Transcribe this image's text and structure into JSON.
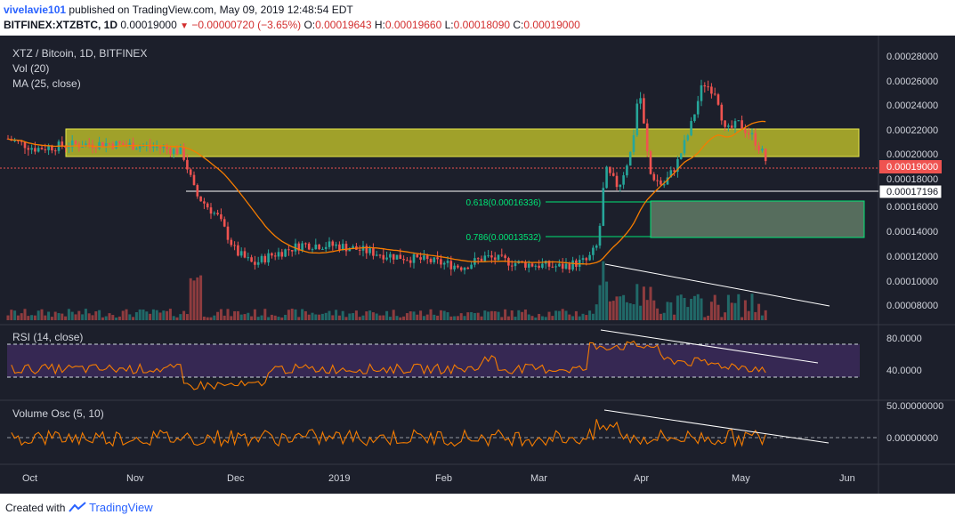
{
  "header": {
    "username": "vivelavie101",
    "published_text": "published on TradingView.com, May 09, 2019 12:48:54 EDT",
    "symbol": "BITFINEX:XTZBTC, 1D",
    "price": "0.00019000",
    "change": "−0.00000720 (−3.65%)",
    "open_label": "O:",
    "open": "0.00019643",
    "high_label": "H:",
    "high": "0.00019660",
    "low_label": "L:",
    "low": "0.00018090",
    "close_label": "C:",
    "close": "0.00019000"
  },
  "panes": {
    "main_title": "XTZ / Bitcoin, 1D, BITFINEX",
    "vol_label": "Vol (20)",
    "ma_label": "MA (25, close)",
    "rsi_label": "RSI (14, close)",
    "osc_label": "Volume Osc (5, 10)"
  },
  "price_axis": {
    "ticks": [
      "0.00028000",
      "0.00026000",
      "0.00024000",
      "0.00022000",
      "0.00020000",
      "0.00018000",
      "0.00016000",
      "0.00014000",
      "0.00012000",
      "0.00010000",
      "0.00008000"
    ],
    "current_price": "0.00019000",
    "line_price": "0.00017196"
  },
  "rsi_axis": {
    "ticks": [
      "80.0000",
      "40.0000"
    ]
  },
  "osc_axis": {
    "ticks": [
      "50.00000000",
      "0.00000000"
    ]
  },
  "time_axis": {
    "labels": [
      "Oct",
      "Nov",
      "Dec",
      "2019",
      "Feb",
      "Mar",
      "Apr",
      "May",
      "Jun"
    ]
  },
  "fib": {
    "level_618": "0.618(0.00016336)",
    "level_786": "0.786(0.00013532)"
  },
  "colors": {
    "background": "#1c1f2b",
    "up": "#26a69a",
    "down": "#ef5350",
    "ma": "#f57c00",
    "resistance_zone": "#d4d42a",
    "fib": "#00e676",
    "rsi_band": "#3b2a5a",
    "current_price_badge": "#ef5350"
  },
  "footer": {
    "created_with": "Created with",
    "brand": "TradingView"
  }
}
